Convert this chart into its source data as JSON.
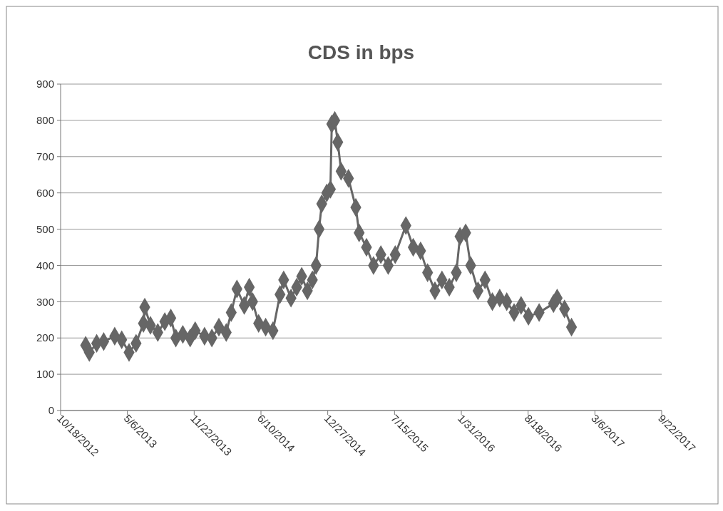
{
  "chart_data": {
    "type": "line",
    "title": "CDS in bps",
    "marker": "diamond",
    "grid": "y",
    "x": [
      "2013-01-01",
      "2013-01-12",
      "2013-02-03",
      "2013-02-24",
      "2013-03-29",
      "2013-04-19",
      "2013-05-11",
      "2013-06-01",
      "2013-06-23",
      "2013-06-27",
      "2013-07-14",
      "2013-08-05",
      "2013-08-26",
      "2013-09-13",
      "2013-09-28",
      "2013-10-19",
      "2013-11-10",
      "2013-11-25",
      "2013-12-23",
      "2014-01-14",
      "2014-02-04",
      "2014-02-26",
      "2014-03-13",
      "2014-03-30",
      "2014-04-21",
      "2014-05-06",
      "2014-05-16",
      "2014-06-03",
      "2014-06-24",
      "2014-07-16",
      "2014-08-06",
      "2014-08-17",
      "2014-09-08",
      "2014-09-25",
      "2014-10-10",
      "2014-10-27",
      "2014-11-11",
      "2014-11-22",
      "2014-12-01",
      "2014-12-09",
      "2014-12-24",
      "2015-01-04",
      "2015-01-08",
      "2015-01-17",
      "2015-01-26",
      "2015-02-05",
      "2015-02-27",
      "2015-03-21",
      "2015-03-31",
      "2015-04-22",
      "2015-05-13",
      "2015-06-04",
      "2015-06-26",
      "2015-07-17",
      "2015-08-18",
      "2015-09-09",
      "2015-10-01",
      "2015-10-22",
      "2015-11-13",
      "2015-12-04",
      "2015-12-26",
      "2016-01-16",
      "2016-01-27",
      "2016-02-13",
      "2016-02-28",
      "2016-03-21",
      "2016-04-11",
      "2016-05-03",
      "2016-05-25",
      "2016-06-15",
      "2016-07-07",
      "2016-07-28",
      "2016-08-19",
      "2016-09-20",
      "2016-11-02",
      "2016-11-13",
      "2016-12-05",
      "2016-12-26"
    ],
    "series": [
      {
        "color": "#666666",
        "values": [
          180,
          160,
          185,
          190,
          205,
          195,
          160,
          185,
          240,
          285,
          235,
          215,
          245,
          255,
          200,
          210,
          200,
          220,
          205,
          200,
          230,
          215,
          270,
          335,
          290,
          340,
          300,
          240,
          230,
          220,
          320,
          360,
          310,
          340,
          370,
          330,
          360,
          400,
          500,
          570,
          600,
          610,
          790,
          800,
          740,
          660,
          640,
          560,
          490,
          450,
          400,
          430,
          400,
          430,
          510,
          450,
          440,
          380,
          330,
          360,
          340,
          380,
          480,
          490,
          400,
          330,
          360,
          300,
          310,
          300,
          270,
          290,
          260,
          270,
          295,
          310,
          280,
          230
        ]
      }
    ],
    "ylim": [
      0,
      900
    ],
    "yticks": [
      0,
      100,
      200,
      300,
      400,
      500,
      600,
      700,
      800,
      900
    ],
    "xlim": [
      "2012-10-18",
      "2017-09-22"
    ],
    "xticks": [
      {
        "value": "2012-10-18",
        "label": "10/18/2012"
      },
      {
        "value": "2013-05-06",
        "label": "5/6/2013"
      },
      {
        "value": "2013-11-22",
        "label": "11/22/2013"
      },
      {
        "value": "2014-06-10",
        "label": "6/10/2014"
      },
      {
        "value": "2014-12-27",
        "label": "12/27/2014"
      },
      {
        "value": "2015-07-15",
        "label": "7/15/2015"
      },
      {
        "value": "2016-01-31",
        "label": "1/31/2016"
      },
      {
        "value": "2016-08-18",
        "label": "8/18/2016"
      },
      {
        "value": "2017-03-06",
        "label": "3/6/2017"
      },
      {
        "value": "2017-09-22",
        "label": "9/22/2017"
      }
    ]
  }
}
